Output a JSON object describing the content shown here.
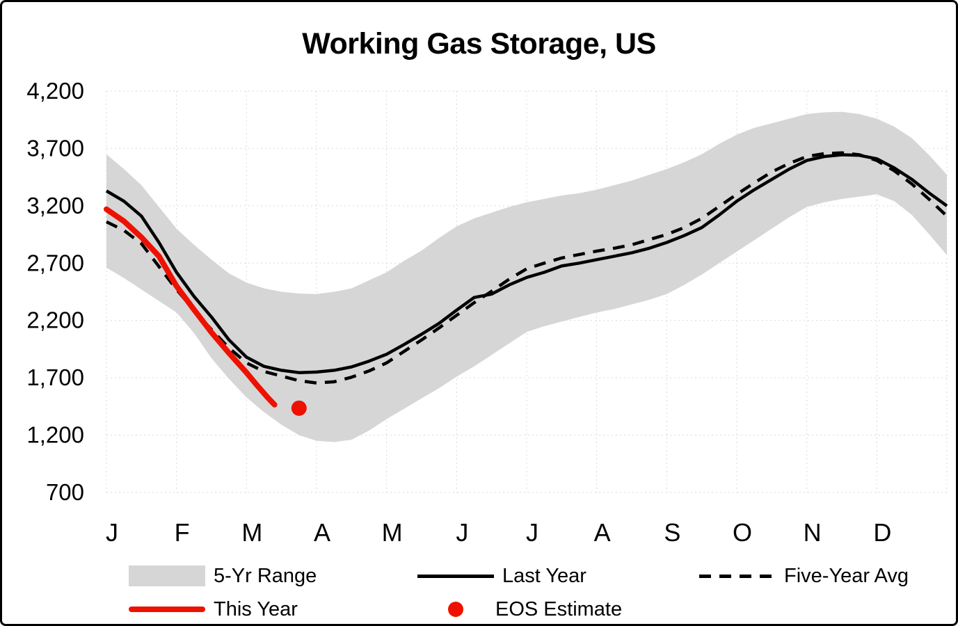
{
  "title": "Working Gas Storage, US",
  "legend": {
    "range_label": "5-Yr Range",
    "last_year_label": "Last Year",
    "five_year_avg_label": "Five-Year Avg",
    "this_year_label": "This Year",
    "eos_label": "EOS Estimate"
  },
  "colors": {
    "range_fill": "#d6d6d6",
    "line_black": "#000000",
    "line_red": "#ee1100",
    "gridline": "#d9d9d9",
    "text": "#000000"
  },
  "chart_data": {
    "type": "line",
    "title": "Working Gas Storage, US",
    "x_months": [
      "J",
      "F",
      "M",
      "A",
      "M",
      "J",
      "J",
      "A",
      "S",
      "O",
      "N",
      "D"
    ],
    "xlim_months": [
      0,
      12
    ],
    "ylim": [
      700,
      4200
    ],
    "yticks": [
      700,
      1200,
      1700,
      2200,
      2700,
      3200,
      3700,
      4200
    ],
    "ytick_labels": [
      "700",
      "1,200",
      "1,700",
      "2,200",
      "2,700",
      "3,200",
      "3,700",
      "4,200"
    ],
    "grid": true,
    "legend_position": "bottom",
    "series": [
      {
        "name": "5-Yr Range",
        "kind": "band",
        "points_top": [
          [
            0,
            3650
          ],
          [
            0.25,
            3520
          ],
          [
            0.5,
            3380
          ],
          [
            0.75,
            3190
          ],
          [
            1,
            3000
          ],
          [
            1.25,
            2860
          ],
          [
            1.5,
            2730
          ],
          [
            1.75,
            2610
          ],
          [
            2,
            2530
          ],
          [
            2.25,
            2480
          ],
          [
            2.5,
            2450
          ],
          [
            2.75,
            2435
          ],
          [
            3,
            2430
          ],
          [
            3.25,
            2450
          ],
          [
            3.5,
            2480
          ],
          [
            3.75,
            2550
          ],
          [
            4,
            2620
          ],
          [
            4.25,
            2720
          ],
          [
            4.5,
            2810
          ],
          [
            4.75,
            2920
          ],
          [
            5,
            3020
          ],
          [
            5.25,
            3090
          ],
          [
            5.5,
            3140
          ],
          [
            5.75,
            3190
          ],
          [
            6,
            3230
          ],
          [
            6.25,
            3260
          ],
          [
            6.5,
            3290
          ],
          [
            6.75,
            3310
          ],
          [
            7,
            3340
          ],
          [
            7.25,
            3380
          ],
          [
            7.5,
            3420
          ],
          [
            7.75,
            3470
          ],
          [
            8,
            3520
          ],
          [
            8.25,
            3580
          ],
          [
            8.5,
            3650
          ],
          [
            8.75,
            3740
          ],
          [
            9,
            3820
          ],
          [
            9.25,
            3880
          ],
          [
            9.5,
            3920
          ],
          [
            9.75,
            3960
          ],
          [
            10,
            4000
          ],
          [
            10.25,
            4015
          ],
          [
            10.5,
            4020
          ],
          [
            10.75,
            4000
          ],
          [
            11,
            3960
          ],
          [
            11.25,
            3890
          ],
          [
            11.5,
            3790
          ],
          [
            11.75,
            3640
          ],
          [
            12,
            3470
          ]
        ],
        "points_bottom": [
          [
            0,
            2660
          ],
          [
            0.25,
            2570
          ],
          [
            0.5,
            2470
          ],
          [
            0.75,
            2370
          ],
          [
            1,
            2270
          ],
          [
            1.25,
            2090
          ],
          [
            1.5,
            1870
          ],
          [
            1.75,
            1690
          ],
          [
            2,
            1530
          ],
          [
            2.25,
            1400
          ],
          [
            2.5,
            1290
          ],
          [
            2.75,
            1200
          ],
          [
            3,
            1150
          ],
          [
            3.25,
            1140
          ],
          [
            3.5,
            1160
          ],
          [
            3.75,
            1240
          ],
          [
            4,
            1340
          ],
          [
            4.25,
            1430
          ],
          [
            4.5,
            1520
          ],
          [
            4.75,
            1610
          ],
          [
            5,
            1710
          ],
          [
            5.25,
            1800
          ],
          [
            5.5,
            1900
          ],
          [
            5.75,
            2000
          ],
          [
            6,
            2100
          ],
          [
            6.25,
            2150
          ],
          [
            6.5,
            2190
          ],
          [
            6.75,
            2230
          ],
          [
            7,
            2270
          ],
          [
            7.25,
            2300
          ],
          [
            7.5,
            2340
          ],
          [
            7.75,
            2380
          ],
          [
            8,
            2430
          ],
          [
            8.25,
            2510
          ],
          [
            8.5,
            2600
          ],
          [
            8.75,
            2700
          ],
          [
            9,
            2800
          ],
          [
            9.25,
            2900
          ],
          [
            9.5,
            3000
          ],
          [
            9.75,
            3100
          ],
          [
            10,
            3190
          ],
          [
            10.25,
            3230
          ],
          [
            10.5,
            3260
          ],
          [
            10.75,
            3280
          ],
          [
            11,
            3300
          ],
          [
            11.25,
            3240
          ],
          [
            11.5,
            3120
          ],
          [
            11.75,
            2950
          ],
          [
            12,
            2770
          ]
        ]
      },
      {
        "name": "Last Year",
        "kind": "line",
        "style": "solid",
        "points": [
          [
            0,
            3330
          ],
          [
            0.25,
            3240
          ],
          [
            0.5,
            3110
          ],
          [
            0.75,
            2880
          ],
          [
            1,
            2620
          ],
          [
            1.25,
            2410
          ],
          [
            1.5,
            2230
          ],
          [
            1.75,
            2030
          ],
          [
            2,
            1880
          ],
          [
            2.25,
            1800
          ],
          [
            2.5,
            1765
          ],
          [
            2.75,
            1745
          ],
          [
            3,
            1750
          ],
          [
            3.25,
            1765
          ],
          [
            3.5,
            1795
          ],
          [
            3.75,
            1845
          ],
          [
            4,
            1905
          ],
          [
            4.25,
            1990
          ],
          [
            4.5,
            2080
          ],
          [
            4.75,
            2175
          ],
          [
            5,
            2290
          ],
          [
            5.25,
            2400
          ],
          [
            5.5,
            2430
          ],
          [
            5.75,
            2510
          ],
          [
            6,
            2575
          ],
          [
            6.25,
            2620
          ],
          [
            6.5,
            2675
          ],
          [
            6.75,
            2700
          ],
          [
            7,
            2730
          ],
          [
            7.25,
            2760
          ],
          [
            7.5,
            2790
          ],
          [
            7.75,
            2830
          ],
          [
            8,
            2880
          ],
          [
            8.25,
            2940
          ],
          [
            8.5,
            3010
          ],
          [
            8.75,
            3120
          ],
          [
            9,
            3240
          ],
          [
            9.25,
            3340
          ],
          [
            9.5,
            3430
          ],
          [
            9.75,
            3520
          ],
          [
            10,
            3595
          ],
          [
            10.25,
            3630
          ],
          [
            10.5,
            3645
          ],
          [
            10.75,
            3640
          ],
          [
            11,
            3610
          ],
          [
            11.25,
            3530
          ],
          [
            11.5,
            3430
          ],
          [
            11.75,
            3310
          ],
          [
            12,
            3200
          ]
        ]
      },
      {
        "name": "Five-Year Avg",
        "kind": "line",
        "style": "dashed",
        "points": [
          [
            0,
            3060
          ],
          [
            0.25,
            2985
          ],
          [
            0.5,
            2870
          ],
          [
            0.75,
            2670
          ],
          [
            1,
            2470
          ],
          [
            1.25,
            2290
          ],
          [
            1.5,
            2120
          ],
          [
            1.75,
            1960
          ],
          [
            2,
            1830
          ],
          [
            2.25,
            1755
          ],
          [
            2.5,
            1715
          ],
          [
            2.75,
            1675
          ],
          [
            3,
            1655
          ],
          [
            3.25,
            1665
          ],
          [
            3.5,
            1705
          ],
          [
            3.75,
            1760
          ],
          [
            4,
            1830
          ],
          [
            4.25,
            1930
          ],
          [
            4.5,
            2030
          ],
          [
            4.75,
            2135
          ],
          [
            5,
            2245
          ],
          [
            5.25,
            2355
          ],
          [
            5.5,
            2455
          ],
          [
            5.75,
            2560
          ],
          [
            6,
            2650
          ],
          [
            6.25,
            2700
          ],
          [
            6.5,
            2745
          ],
          [
            6.75,
            2775
          ],
          [
            7,
            2805
          ],
          [
            7.25,
            2830
          ],
          [
            7.5,
            2860
          ],
          [
            7.75,
            2905
          ],
          [
            8,
            2950
          ],
          [
            8.25,
            3010
          ],
          [
            8.5,
            3090
          ],
          [
            8.75,
            3195
          ],
          [
            9,
            3300
          ],
          [
            9.25,
            3400
          ],
          [
            9.5,
            3495
          ],
          [
            9.75,
            3570
          ],
          [
            10,
            3630
          ],
          [
            10.25,
            3655
          ],
          [
            10.5,
            3662
          ],
          [
            10.75,
            3645
          ],
          [
            11,
            3595
          ],
          [
            11.25,
            3505
          ],
          [
            11.5,
            3390
          ],
          [
            11.75,
            3255
          ],
          [
            12,
            3110
          ]
        ]
      },
      {
        "name": "This Year",
        "kind": "line",
        "style": "solid-red",
        "points": [
          [
            0,
            3170
          ],
          [
            0.25,
            3065
          ],
          [
            0.5,
            2925
          ],
          [
            0.75,
            2760
          ],
          [
            1,
            2500
          ],
          [
            1.25,
            2295
          ],
          [
            1.5,
            2095
          ],
          [
            1.75,
            1915
          ],
          [
            2,
            1745
          ],
          [
            2.15,
            1635
          ],
          [
            2.3,
            1530
          ],
          [
            2.4,
            1465
          ]
        ]
      },
      {
        "name": "EOS Estimate",
        "kind": "point",
        "point": [
          2.75,
          1435
        ]
      }
    ]
  }
}
